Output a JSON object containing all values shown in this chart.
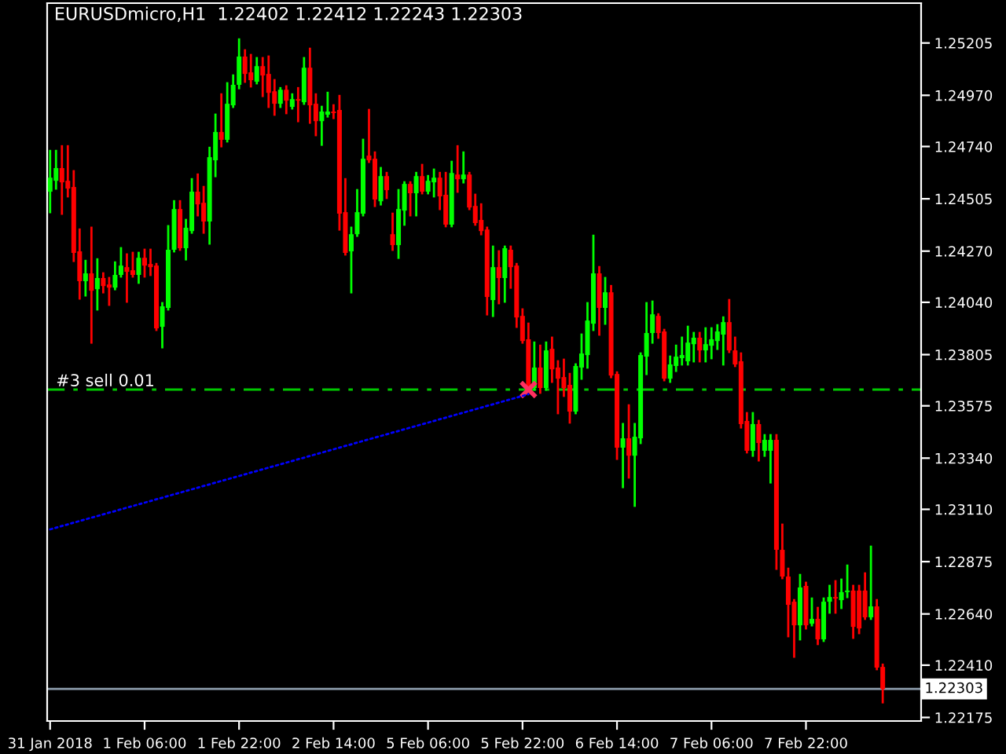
{
  "chart_data": {
    "type": "candlestick",
    "title": "EURUSDmicro,H1  1.22402 1.22412 1.22243 1.22303",
    "categories": [
      "31 Jan 2018",
      null,
      null,
      null,
      null,
      null,
      null,
      null,
      null,
      null,
      null,
      null,
      null,
      null,
      null,
      null,
      "1 Feb 06:00",
      null,
      null,
      null,
      null,
      null,
      null,
      null,
      null,
      null,
      null,
      null,
      null,
      null,
      null,
      null,
      "1 Feb 22:00",
      null,
      null,
      null,
      null,
      null,
      null,
      null,
      null,
      null,
      null,
      null,
      null,
      null,
      null,
      null,
      "2 Feb 14:00",
      null,
      null,
      null,
      null,
      null,
      null,
      null,
      null,
      null,
      null,
      null,
      null,
      null,
      null,
      null,
      "5 Feb 06:00",
      null,
      null,
      null,
      null,
      null,
      null,
      null,
      null,
      null,
      null,
      null,
      null,
      null,
      null,
      null,
      "5 Feb 22:00",
      null,
      null,
      null,
      null,
      null,
      null,
      null,
      null,
      null,
      null,
      null,
      null,
      null,
      null,
      null,
      "6 Feb 14:00",
      null,
      null,
      null,
      null,
      null,
      null,
      null,
      null,
      null,
      null,
      null,
      null,
      null,
      null,
      null,
      "7 Feb 06:00",
      null,
      null,
      null,
      null,
      null,
      null,
      null,
      null,
      null,
      null,
      null,
      null,
      null,
      null,
      null,
      "7 Feb 22:00",
      null,
      null,
      null,
      null,
      null,
      null,
      null,
      null,
      null,
      null,
      null,
      null,
      null
    ],
    "ohlc": [
      [
        1.24537,
        1.2472,
        1.24445,
        1.246
      ],
      [
        1.24586,
        1.2472,
        1.24551,
        1.24643
      ],
      [
        1.24643,
        1.24741,
        1.24438,
        1.24579
      ],
      [
        1.24586,
        1.24741,
        1.24516,
        1.24551
      ],
      [
        1.24558,
        1.24629,
        1.24226,
        1.24262
      ],
      [
        1.24269,
        1.24367,
        1.24057,
        1.24135
      ],
      [
        1.24135,
        1.24226,
        1.24071,
        1.2417
      ],
      [
        1.2417,
        1.24375,
        1.23859,
        1.24092
      ],
      [
        1.24099,
        1.24233,
        1.24008,
        1.24149
      ],
      [
        1.24149,
        1.2417,
        1.24085,
        1.24113
      ],
      [
        1.2412,
        1.24149,
        1.24029,
        1.24106
      ],
      [
        1.24106,
        1.24219,
        1.24099,
        1.24163
      ],
      [
        1.24163,
        1.24283,
        1.24156,
        1.24205
      ],
      [
        1.24198,
        1.24255,
        1.24043,
        1.24177
      ],
      [
        1.24184,
        1.24262,
        1.24156,
        1.24163
      ],
      [
        1.24163,
        1.24262,
        1.24128,
        1.2424
      ],
      [
        1.2424,
        1.24276,
        1.24156,
        1.24205
      ],
      [
        1.24212,
        1.24276,
        1.24163,
        1.24198
      ],
      [
        1.24205,
        1.24212,
        1.23916,
        1.23923
      ],
      [
        1.2393,
        1.24036,
        1.23838,
        1.24022
      ],
      [
        1.24015,
        1.24382,
        1.24008,
        1.24276
      ],
      [
        1.24276,
        1.24494,
        1.24269,
        1.24459
      ],
      [
        1.24459,
        1.24494,
        1.24276,
        1.24283
      ],
      [
        1.24283,
        1.2441,
        1.24233,
        1.24375
      ],
      [
        1.2436,
        1.24593,
        1.24353,
        1.24537
      ],
      [
        1.24537,
        1.24614,
        1.24431,
        1.2448
      ],
      [
        1.24487,
        1.24558,
        1.24353,
        1.24403
      ],
      [
        1.24403,
        1.24734,
        1.24304,
        1.24692
      ],
      [
        1.24678,
        1.24883,
        1.24607,
        1.24805
      ],
      [
        1.24805,
        1.24974,
        1.24741,
        1.2477
      ],
      [
        1.2477,
        1.25024,
        1.24763,
        1.24932
      ],
      [
        1.24925,
        1.25059,
        1.24918,
        1.25017
      ],
      [
        1.25017,
        1.25221,
        1.25002,
        1.25144
      ],
      [
        1.25144,
        1.25172,
        1.25031,
        1.25066
      ],
      [
        1.25073,
        1.25151,
        1.2501,
        1.25038
      ],
      [
        1.25031,
        1.25137,
        1.25024,
        1.25101
      ],
      [
        1.25101,
        1.25137,
        1.24967,
        1.25059
      ],
      [
        1.25066,
        1.25144,
        1.24918,
        1.24981
      ],
      [
        1.24988,
        1.25038,
        1.24883,
        1.24932
      ],
      [
        1.24932,
        1.25002,
        1.24918,
        1.24995
      ],
      [
        1.24995,
        1.2501,
        1.2489,
        1.24946
      ],
      [
        1.24918,
        1.24974,
        1.24911,
        1.24953
      ],
      [
        1.24953,
        1.25002,
        1.24854,
        1.24946
      ],
      [
        1.24939,
        1.25137,
        1.24932,
        1.25094
      ],
      [
        1.25094,
        1.25179,
        1.24847,
        1.24925
      ],
      [
        1.24932,
        1.24974,
        1.24791,
        1.24854
      ],
      [
        1.24854,
        1.24918,
        1.24748,
        1.24897
      ],
      [
        1.24883,
        1.24981,
        1.24875,
        1.24897
      ],
      [
        1.24897,
        1.24925,
        1.24868,
        1.2489
      ],
      [
        1.24904,
        1.24967,
        1.24367,
        1.24438
      ],
      [
        1.24445,
        1.24593,
        1.24255,
        1.24262
      ],
      [
        1.24269,
        1.24375,
        1.24085,
        1.24346
      ],
      [
        1.24346,
        1.24544,
        1.24339,
        1.24445
      ],
      [
        1.24438,
        1.2477,
        1.24431,
        1.24685
      ],
      [
        1.24699,
        1.24904,
        1.24671,
        1.24678
      ],
      [
        1.24685,
        1.24713,
        1.24473,
        1.24502
      ],
      [
        1.24494,
        1.24643,
        1.2448,
        1.24607
      ],
      [
        1.24607,
        1.24621,
        1.24509,
        1.24544
      ],
      [
        1.24346,
        1.24438,
        1.24276,
        1.24297
      ],
      [
        1.24297,
        1.24544,
        1.2424,
        1.24459
      ],
      [
        1.24452,
        1.24579,
        1.24389,
        1.24572
      ],
      [
        1.24572,
        1.24579,
        1.24431,
        1.2453
      ],
      [
        1.2453,
        1.24621,
        1.24431,
        1.24607
      ],
      [
        1.24607,
        1.24657,
        1.2453,
        1.24537
      ],
      [
        1.24537,
        1.24607,
        1.2453,
        1.24586
      ],
      [
        1.24579,
        1.24636,
        1.24516,
        1.246
      ],
      [
        1.246,
        1.24621,
        1.24459,
        1.24516
      ],
      [
        1.24523,
        1.24621,
        1.24382,
        1.24389
      ],
      [
        1.24389,
        1.24671,
        1.24382,
        1.24621
      ],
      [
        1.24614,
        1.24741,
        1.24537,
        1.24593
      ],
      [
        1.24593,
        1.24713,
        1.24579,
        1.24614
      ],
      [
        1.24614,
        1.24621,
        1.24459,
        1.24466
      ],
      [
        1.24473,
        1.24523,
        1.24389,
        1.24396
      ],
      [
        1.2441,
        1.2448,
        1.24346,
        1.2436
      ],
      [
        1.24367,
        1.24375,
        1.23986,
        1.24064
      ],
      [
        1.2405,
        1.2429,
        1.23979,
        1.24198
      ],
      [
        1.24198,
        1.24269,
        1.24036,
        1.24149
      ],
      [
        1.24149,
        1.2429,
        1.24043,
        1.24283
      ],
      [
        1.24276,
        1.2429,
        1.24106,
        1.24198
      ],
      [
        1.24205,
        1.24212,
        1.2393,
        1.23972
      ],
      [
        1.23979,
        1.24008,
        1.23859,
        1.23866
      ],
      [
        1.23874,
        1.23944,
        1.23648,
        1.23655
      ],
      [
        1.23655,
        1.23859,
        1.23648,
        1.23747
      ],
      [
        1.23747,
        1.23845,
        1.23634,
        1.23655
      ],
      [
        1.23655,
        1.23859,
        1.23648,
        1.23824
      ],
      [
        1.23831,
        1.23881,
        1.23683,
        1.23739
      ],
      [
        1.23747,
        1.23775,
        1.23542,
        1.23697
      ],
      [
        1.23704,
        1.23782,
        1.2362,
        1.23655
      ],
      [
        1.23669,
        1.23718,
        1.235,
        1.23549
      ],
      [
        1.23549,
        1.23761,
        1.23542,
        1.23754
      ],
      [
        1.23747,
        1.23895,
        1.23697,
        1.2381
      ],
      [
        1.23803,
        1.24036,
        1.23747,
        1.23958
      ],
      [
        1.23944,
        1.24339,
        1.23916,
        1.2417
      ],
      [
        1.2417,
        1.24198,
        1.23895,
        1.24015
      ],
      [
        1.24015,
        1.24149,
        1.23944,
        1.24085
      ],
      [
        1.24085,
        1.24113,
        1.23704,
        1.23711
      ],
      [
        1.23718,
        1.23725,
        1.23337,
        1.23387
      ],
      [
        1.23387,
        1.23493,
        1.2321,
        1.23429
      ],
      [
        1.23429,
        1.23577,
        1.23253,
        1.23351
      ],
      [
        1.23351,
        1.23493,
        1.23126,
        1.23436
      ],
      [
        1.23429,
        1.2381,
        1.23408,
        1.23803
      ],
      [
        1.23796,
        1.24036,
        1.23718,
        1.23902
      ],
      [
        1.23902,
        1.24043,
        1.23859,
        1.23986
      ],
      [
        1.23979,
        1.23986,
        1.23881,
        1.23902
      ],
      [
        1.23909,
        1.23916,
        1.2369,
        1.23697
      ],
      [
        1.23697,
        1.23796,
        1.23683,
        1.23761
      ],
      [
        1.23754,
        1.23845,
        1.23732,
        1.23796
      ],
      [
        1.23789,
        1.23881,
        1.23761,
        1.23803
      ],
      [
        1.23775,
        1.2393,
        1.23761,
        1.23859
      ],
      [
        1.23852,
        1.23902,
        1.23775,
        1.23881
      ],
      [
        1.23881,
        1.23902,
        1.23775,
        1.23824
      ],
      [
        1.23824,
        1.23923,
        1.23775,
        1.23852
      ],
      [
        1.23845,
        1.23923,
        1.23789,
        1.23874
      ],
      [
        1.23866,
        1.23937,
        1.23831,
        1.23909
      ],
      [
        1.23895,
        1.23972,
        1.23761,
        1.23951
      ],
      [
        1.23951,
        1.2405,
        1.23817,
        1.23824
      ],
      [
        1.23824,
        1.23881,
        1.23754,
        1.23761
      ],
      [
        1.23775,
        1.2381,
        1.23478,
        1.23493
      ],
      [
        1.23507,
        1.23542,
        1.23366,
        1.23373
      ],
      [
        1.23373,
        1.23542,
        1.23351,
        1.23493
      ],
      [
        1.23493,
        1.23507,
        1.2333,
        1.23408
      ],
      [
        1.23373,
        1.23443,
        1.23351,
        1.23422
      ],
      [
        1.23373,
        1.23443,
        1.23231,
        1.23422
      ],
      [
        1.23422,
        1.23443,
        1.22843,
        1.22928
      ],
      [
        1.22928,
        1.23041,
        1.22801,
        1.22808
      ],
      [
        1.22808,
        1.22843,
        1.2254,
        1.22681
      ],
      [
        1.22695,
        1.22702,
        1.22448,
        1.22589
      ],
      [
        1.22589,
        1.22815,
        1.22526,
        1.22759
      ],
      [
        1.22766,
        1.2278,
        1.22575,
        1.22589
      ],
      [
        1.22596,
        1.22709,
        1.22589,
        1.22618
      ],
      [
        1.22618,
        1.22667,
        1.22505,
        1.22526
      ],
      [
        1.22526,
        1.22709,
        1.22519,
        1.22695
      ],
      [
        1.22695,
        1.22766,
        1.22646,
        1.22716
      ],
      [
        1.22716,
        1.22787,
        1.22646,
        1.22709
      ],
      [
        1.22702,
        1.22794,
        1.22667,
        1.22738
      ],
      [
        1.22738,
        1.22857,
        1.22716,
        1.22745
      ],
      [
        1.22745,
        1.22766,
        1.22533,
        1.22582
      ],
      [
        1.22745,
        1.22766,
        1.22554,
        1.22575
      ],
      [
        1.22745,
        1.22822,
        1.22618,
        1.22625
      ],
      [
        1.22625,
        1.22942,
        1.22618,
        1.22674
      ],
      [
        1.22674,
        1.22702,
        1.22392,
        1.22399
      ],
      [
        1.22402,
        1.22412,
        1.22243,
        1.22303
      ]
    ],
    "colors": [
      "#00ff00",
      "#00ff00",
      "#ff0000",
      "#ff0000",
      "#ff0000",
      "#ff0000",
      "#00ff00",
      "#ff0000",
      "#00ff00",
      "#ff0000",
      "#ff0000",
      "#00ff00",
      "#00ff00",
      "#ff0000",
      "#ff0000",
      "#00ff00",
      "#ff0000",
      "#ff0000",
      "#ff0000",
      "#00ff00",
      "#00ff00",
      "#00ff00",
      "#ff0000",
      "#00ff00",
      "#00ff00",
      "#ff0000",
      "#ff0000",
      "#00ff00",
      "#00ff00",
      "#ff0000",
      "#00ff00",
      "#00ff00",
      "#00ff00",
      "#ff0000",
      "#ff0000",
      "#00ff00",
      "#ff0000",
      "#ff0000",
      "#ff0000",
      "#00ff00",
      "#ff0000",
      "#00ff00",
      "#ff0000",
      "#00ff00",
      "#ff0000",
      "#ff0000",
      "#00ff00",
      "#00ff00",
      "#ff0000",
      "#ff0000",
      "#ff0000",
      "#00ff00",
      "#00ff00",
      "#00ff00",
      "#ff0000",
      "#ff0000",
      "#00ff00",
      "#ff0000",
      "#ff0000",
      "#00ff00",
      "#00ff00",
      "#ff0000",
      "#00ff00",
      "#ff0000",
      "#00ff00",
      "#00ff00",
      "#ff0000",
      "#ff0000",
      "#00ff00",
      "#ff0000",
      "#00ff00",
      "#ff0000",
      "#ff0000",
      "#ff0000",
      "#ff0000",
      "#00ff00",
      "#ff0000",
      "#00ff00",
      "#ff0000",
      "#ff0000",
      "#ff0000",
      "#ff0000",
      "#00ff00",
      "#ff0000",
      "#00ff00",
      "#ff0000",
      "#ff0000",
      "#ff0000",
      "#ff0000",
      "#00ff00",
      "#00ff00",
      "#00ff00",
      "#00ff00",
      "#ff0000",
      "#00ff00",
      "#ff0000",
      "#ff0000",
      "#00ff00",
      "#ff0000",
      "#00ff00",
      "#00ff00",
      "#00ff00",
      "#00ff00",
      "#ff0000",
      "#ff0000",
      "#00ff00",
      "#00ff00",
      "#00ff00",
      "#00ff00",
      "#00ff00",
      "#ff0000",
      "#00ff00",
      "#00ff00",
      "#00ff00",
      "#00ff00",
      "#ff0000",
      "#ff0000",
      "#ff0000",
      "#ff0000",
      "#00ff00",
      "#ff0000",
      "#00ff00",
      "#00ff00",
      "#ff0000",
      "#ff0000",
      "#ff0000",
      "#ff0000",
      "#00ff00",
      "#ff0000",
      "#00ff00",
      "#ff0000",
      "#00ff00",
      "#00ff00",
      "#ff0000",
      "#00ff00",
      "#00ff00",
      "#ff0000",
      "#ff0000",
      "#ff0000",
      "#00ff00",
      "#ff0000",
      "#ff0000"
    ],
    "series": [
      {
        "type": "line",
        "color": "#0000ff",
        "line_style": "dotted",
        "values": [
          1.2302,
          null,
          null,
          null,
          null,
          null,
          null,
          null,
          null,
          null,
          null,
          null,
          null,
          null,
          null,
          null,
          null,
          null,
          null,
          null,
          null,
          null,
          null,
          null,
          null,
          null,
          null,
          null,
          null,
          null,
          null,
          null,
          null,
          null,
          null,
          null,
          null,
          null,
          null,
          null,
          null,
          null,
          null,
          null,
          null,
          null,
          null,
          null,
          null,
          null,
          null,
          null,
          null,
          null,
          null,
          null,
          null,
          null,
          null,
          null,
          null,
          null,
          null,
          null,
          null,
          null,
          null,
          null,
          null,
          null,
          null,
          null,
          null,
          null,
          null,
          null,
          null,
          null,
          null,
          null,
          null,
          1.23627,
          null,
          null,
          null,
          null,
          null,
          null,
          null,
          null,
          null,
          null,
          null,
          null,
          null,
          null,
          null,
          null,
          null,
          null,
          null,
          null,
          null,
          null,
          null,
          null,
          null,
          null,
          null,
          null,
          null,
          null,
          null,
          null,
          null,
          null,
          null,
          null,
          null,
          null,
          null,
          null,
          null,
          null,
          null,
          null,
          null,
          null,
          null,
          null,
          null,
          null,
          null,
          null,
          null,
          null,
          null,
          null,
          null,
          null,
          null,
          null
        ]
      },
      {
        "type": "scatter",
        "color": "#ff3060",
        "marker": "cross",
        "values": [
          null,
          null,
          null,
          null,
          null,
          null,
          null,
          null,
          null,
          null,
          null,
          null,
          null,
          null,
          null,
          null,
          null,
          null,
          null,
          null,
          null,
          null,
          null,
          null,
          null,
          null,
          null,
          null,
          null,
          null,
          null,
          null,
          null,
          null,
          null,
          null,
          null,
          null,
          null,
          null,
          null,
          null,
          null,
          null,
          null,
          null,
          null,
          null,
          null,
          null,
          null,
          null,
          null,
          null,
          null,
          null,
          null,
          null,
          null,
          null,
          null,
          null,
          null,
          null,
          null,
          null,
          null,
          null,
          null,
          null,
          null,
          null,
          null,
          null,
          null,
          null,
          null,
          null,
          null,
          null,
          null,
          1.23648,
          null,
          null,
          null,
          null,
          null,
          null,
          null,
          null,
          null,
          null,
          null,
          null,
          null,
          null,
          null,
          null,
          null,
          null,
          null,
          null,
          null,
          null,
          null,
          null,
          null,
          null,
          null,
          null,
          null,
          null,
          null,
          null,
          null,
          null,
          null,
          null,
          null,
          null,
          null,
          null,
          null,
          null,
          null,
          null,
          null,
          null,
          null,
          null,
          null,
          null,
          null,
          null,
          null,
          null,
          null,
          null,
          null,
          null,
          null,
          null
        ]
      }
    ],
    "ref_lines": [
      {
        "axis": "y",
        "value": 1.23648,
        "label": "#3 sell 0.01",
        "color": "#00c800",
        "line_style": "dashed"
      },
      {
        "axis": "y",
        "value": 1.22303,
        "label": "1.22303",
        "color": "#8c9cac",
        "line_style": "solid"
      }
    ],
    "ylim": [
      1.22159,
      1.25384
    ],
    "yticks": [
      1.25205,
      {
        "value": 1.2497,
        "label": "1.24970"
      },
      {
        "value": 1.2474,
        "label": "1.24740"
      },
      1.24505,
      {
        "value": 1.2427,
        "label": "1.24270"
      },
      {
        "value": 1.2404,
        "label": "1.24040"
      },
      1.23805,
      1.23575,
      {
        "value": 1.2334,
        "label": "1.23340"
      },
      {
        "value": 1.2311,
        "label": "1.23110"
      },
      1.22875,
      {
        "value": 1.2264,
        "label": "1.22640"
      },
      {
        "value": 1.2241,
        "label": "1.22410"
      },
      1.22175
    ],
    "grid": false,
    "legend": false
  }
}
